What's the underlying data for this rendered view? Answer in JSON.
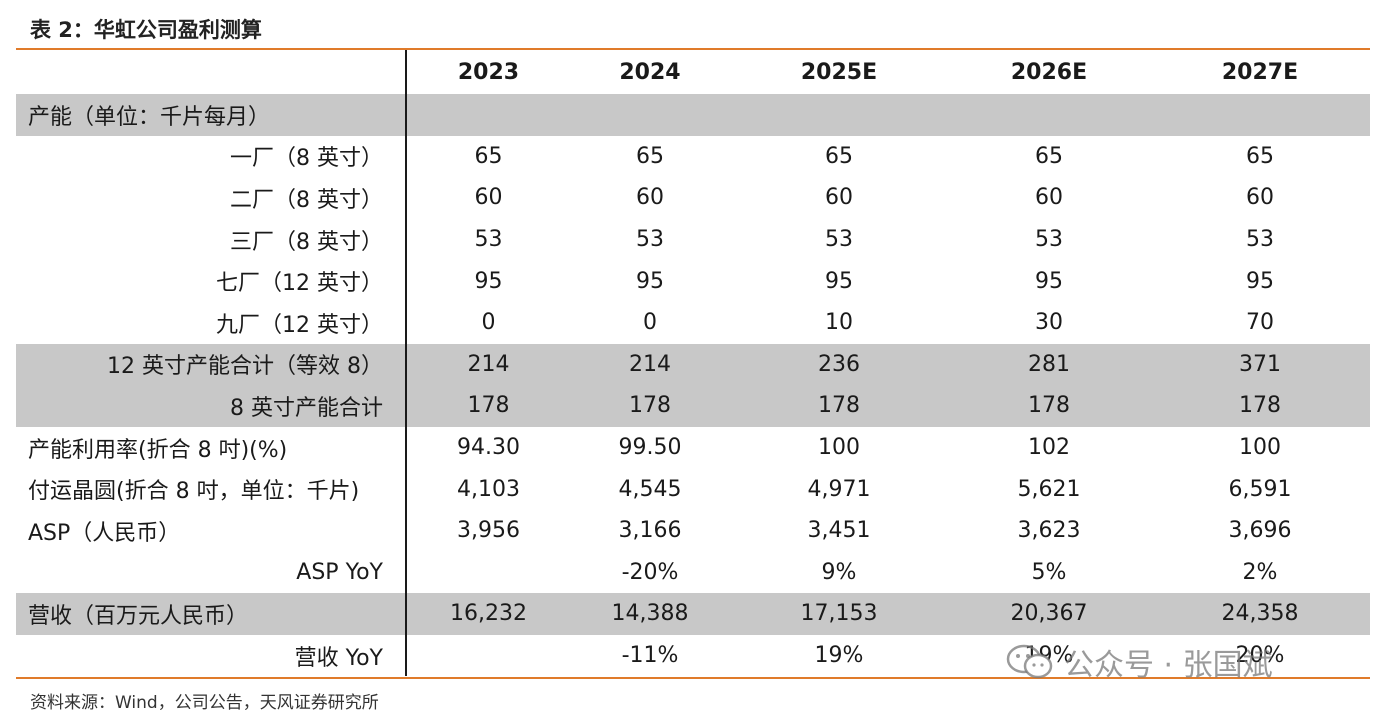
{
  "title": "表 2：华虹公司盈利测算",
  "header": [
    "",
    "2023",
    "2024",
    "2025E",
    "2026E",
    "2027E"
  ],
  "rows": [
    {
      "label": "产能（单位：千片每月）",
      "align": "left",
      "gray": true,
      "values": [
        "",
        "",
        "",
        "",
        ""
      ]
    },
    {
      "label": "一厂（8 英寸）",
      "align": "right",
      "gray": false,
      "values": [
        "65",
        "65",
        "65",
        "65",
        "65"
      ]
    },
    {
      "label": "二厂（8 英寸）",
      "align": "right",
      "gray": false,
      "values": [
        "60",
        "60",
        "60",
        "60",
        "60"
      ]
    },
    {
      "label": "三厂（8 英寸）",
      "align": "right",
      "gray": false,
      "values": [
        "53",
        "53",
        "53",
        "53",
        "53"
      ]
    },
    {
      "label": "七厂（12 英寸）",
      "align": "right",
      "gray": false,
      "values": [
        "95",
        "95",
        "95",
        "95",
        "95"
      ]
    },
    {
      "label": "九厂（12 英寸）",
      "align": "right",
      "gray": false,
      "values": [
        "0",
        "0",
        "10",
        "30",
        "70"
      ]
    },
    {
      "label": "12 英寸产能合计（等效 8）",
      "align": "right",
      "gray": true,
      "values": [
        "214",
        "214",
        "236",
        "281",
        "371"
      ]
    },
    {
      "label": "8 英寸产能合计",
      "align": "right",
      "gray": true,
      "values": [
        "178",
        "178",
        "178",
        "178",
        "178"
      ]
    },
    {
      "label": "产能利用率(折合 8 吋)(%)",
      "align": "left",
      "gray": false,
      "values": [
        "94.30",
        "99.50",
        "100",
        "102",
        "100"
      ]
    },
    {
      "label": "付运晶圆(折合 8 吋，单位：千片)",
      "align": "left",
      "gray": false,
      "values": [
        "4,103",
        "4,545",
        "4,971",
        "5,621",
        "6,591"
      ]
    },
    {
      "label": "ASP（人民币）",
      "align": "left",
      "gray": false,
      "values": [
        "3,956",
        "3,166",
        "3,451",
        "3,623",
        "3,696"
      ]
    },
    {
      "label": "ASP YoY",
      "align": "right",
      "gray": false,
      "values": [
        "",
        "-20%",
        "9%",
        "5%",
        "2%"
      ]
    },
    {
      "label": "营收（百万元人民币）",
      "align": "left",
      "gray": true,
      "values": [
        "16,232",
        "14,388",
        "17,153",
        "20,367",
        "24,358"
      ]
    },
    {
      "label": "营收 YoY",
      "align": "right",
      "gray": false,
      "values": [
        "",
        "-11%",
        "19%",
        "19%",
        "20%"
      ]
    }
  ],
  "source": "资料来源：Wind，公司公告，天风证券研究所",
  "watermark": "公众号 · 张国斌",
  "colors": {
    "accent_rule": "#e07b2a",
    "gray_fill": "#c8c8c8"
  }
}
